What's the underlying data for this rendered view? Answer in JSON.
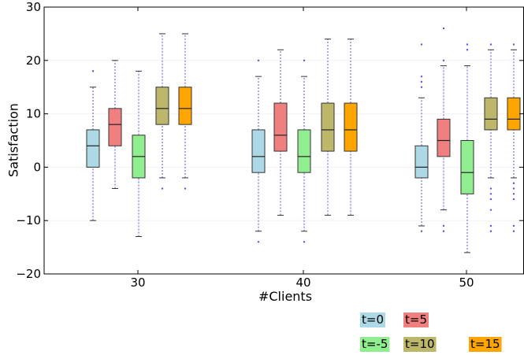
{
  "chart_data": {
    "type": "box",
    "xlabel": "#Clients",
    "ylabel": "Satisfaction",
    "ylim": [
      -20,
      30
    ],
    "yticks": [
      -20,
      -10,
      0,
      10,
      20,
      30
    ],
    "grid": false,
    "legend_position": "bottom-right",
    "categories": [
      "30",
      "40",
      "50"
    ],
    "series": [
      {
        "name": "t=0",
        "color": "#add8e6",
        "boxes": [
          {
            "q1": 0,
            "median": 4,
            "q3": 7,
            "whisker_low": -10,
            "whisker_high": 15,
            "outliers": [
              18
            ]
          },
          {
            "q1": -1,
            "median": 2,
            "q3": 7,
            "whisker_low": -12,
            "whisker_high": 17,
            "outliers": [
              -14,
              20
            ]
          },
          {
            "q1": -2,
            "median": 0,
            "q3": 4,
            "whisker_low": -11,
            "whisker_high": 13,
            "outliers": [
              -12,
              15,
              16,
              17,
              23
            ]
          }
        ]
      },
      {
        "name": "t=5",
        "color": "#f08080",
        "boxes": [
          {
            "q1": 4,
            "median": 8,
            "q3": 11,
            "whisker_low": -4,
            "whisker_high": 20,
            "outliers": []
          },
          {
            "q1": 3,
            "median": 6,
            "q3": 12,
            "whisker_low": -9,
            "whisker_high": 22,
            "outliers": []
          },
          {
            "q1": 2,
            "median": 5,
            "q3": 9,
            "whisker_low": -8,
            "whisker_high": 19,
            "outliers": [
              -12,
              -11,
              20,
              26
            ]
          }
        ]
      },
      {
        "name": "t=-5",
        "color": "#90ee90",
        "boxes": [
          {
            "q1": -2,
            "median": 2,
            "q3": 6,
            "whisker_low": -13,
            "whisker_high": 18,
            "outliers": []
          },
          {
            "q1": -1,
            "median": 2,
            "q3": 7,
            "whisker_low": -12,
            "whisker_high": 17,
            "outliers": [
              -14,
              20
            ]
          },
          {
            "q1": -5,
            "median": -1,
            "q3": 5,
            "whisker_low": -16,
            "whisker_high": 19,
            "outliers": [
              22,
              23
            ]
          }
        ]
      },
      {
        "name": "t=10",
        "color": "#bdb76b",
        "boxes": [
          {
            "q1": 8,
            "median": 11,
            "q3": 15,
            "whisker_low": -2,
            "whisker_high": 25,
            "outliers": [
              -4
            ]
          },
          {
            "q1": 3,
            "median": 7,
            "q3": 12,
            "whisker_low": -9,
            "whisker_high": 24,
            "outliers": []
          },
          {
            "q1": 7,
            "median": 9,
            "q3": 13,
            "whisker_low": -2,
            "whisker_high": 22,
            "outliers": [
              -12,
              -11,
              -8,
              -6,
              -5,
              -4,
              23
            ]
          }
        ]
      },
      {
        "name": "t=15",
        "color": "#ffa500",
        "boxes": [
          {
            "q1": 8,
            "median": 11,
            "q3": 15,
            "whisker_low": -2,
            "whisker_high": 25,
            "outliers": [
              -4
            ]
          },
          {
            "q1": 3,
            "median": 7,
            "q3": 12,
            "whisker_low": -9,
            "whisker_high": 24,
            "outliers": []
          },
          {
            "q1": 7,
            "median": 9,
            "q3": 13,
            "whisker_low": -2,
            "whisker_high": 22,
            "outliers": [
              -12,
              -11,
              -6,
              -5,
              -4,
              -3,
              23
            ]
          }
        ]
      }
    ]
  }
}
